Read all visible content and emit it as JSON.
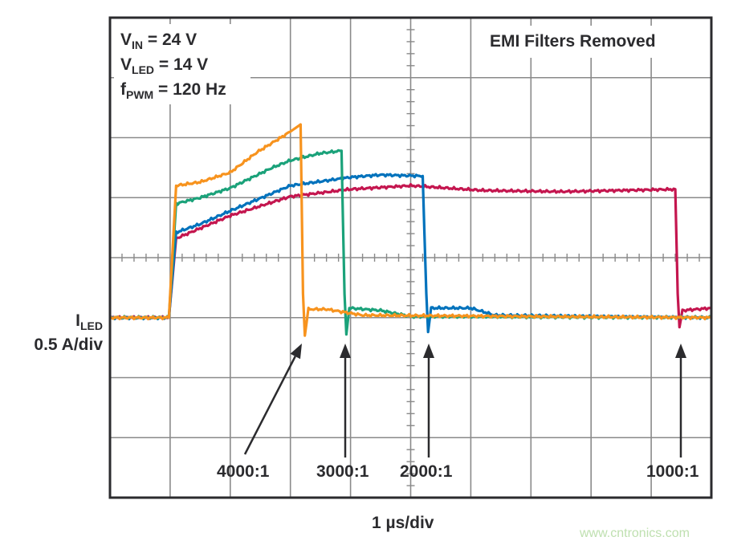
{
  "chart_data": {
    "type": "line",
    "title": "EMI Filters Removed",
    "annotations_text": {
      "vin": {
        "main": "V",
        "sub": "IN",
        "rest": " = 24 V"
      },
      "vled": {
        "main": "V",
        "sub": "LED",
        "rest": " = 14 V"
      },
      "fpwm": {
        "main": "f",
        "sub": "PWM",
        "rest": " = 120 Hz"
      }
    },
    "xlabel": "1 µs/div",
    "ylabel": {
      "main": "I",
      "sub": "LED",
      "scale": "0.5 A/div"
    },
    "x_unit": "µs",
    "y_unit": "A",
    "xlim": [
      0,
      10
    ],
    "ylim": [
      -1.5,
      2.5
    ],
    "grid": true,
    "series": [
      {
        "name": "1000:1",
        "color": "#C4164F",
        "x": [
          0,
          0.98,
          1.1,
          2.0,
          3.0,
          4.0,
          5.0,
          6.2,
          7.5,
          9.4,
          9.44,
          9.47,
          9.52,
          10
        ],
        "y": [
          0,
          0,
          0.66,
          0.85,
          1.01,
          1.07,
          1.1,
          1.06,
          1.05,
          1.07,
          0.2,
          -0.08,
          0.06,
          0.08
        ]
      },
      {
        "name": "2000:1",
        "color": "#0072BC",
        "x": [
          0,
          0.98,
          1.1,
          1.5,
          2.0,
          3.0,
          4.0,
          4.5,
          5.2,
          5.26,
          5.29,
          5.34,
          6.0,
          6.4,
          10
        ],
        "y": [
          0,
          0,
          0.71,
          0.78,
          0.89,
          1.1,
          1.17,
          1.19,
          1.18,
          0.2,
          -0.12,
          0.08,
          0.08,
          0.02,
          0.0
        ]
      },
      {
        "name": "3000:1",
        "color": "#1BA27A",
        "x": [
          0,
          0.98,
          1.1,
          1.5,
          2.0,
          2.7,
          3.0,
          3.5,
          3.85,
          3.9,
          3.93,
          3.98,
          4.5,
          5.0,
          10
        ],
        "y": [
          0,
          0,
          0.95,
          1.0,
          1.08,
          1.25,
          1.31,
          1.37,
          1.39,
          0.2,
          -0.14,
          0.08,
          0.06,
          0.01,
          0.0
        ]
      },
      {
        "name": "4000:1",
        "color": "#F7931E",
        "x": [
          0,
          0.98,
          1.1,
          1.5,
          2.0,
          2.45,
          3.0,
          3.17,
          3.21,
          3.24,
          3.3,
          3.6,
          4.2,
          10
        ],
        "y": [
          0,
          0,
          1.1,
          1.13,
          1.21,
          1.38,
          1.55,
          1.61,
          0.2,
          -0.15,
          0.07,
          0.07,
          0.02,
          0.0
        ]
      }
    ],
    "arrow_labels": [
      "4000:1",
      "3000:1",
      "2000:1",
      "1000:1"
    ]
  },
  "watermark": "www.cntronics.com"
}
